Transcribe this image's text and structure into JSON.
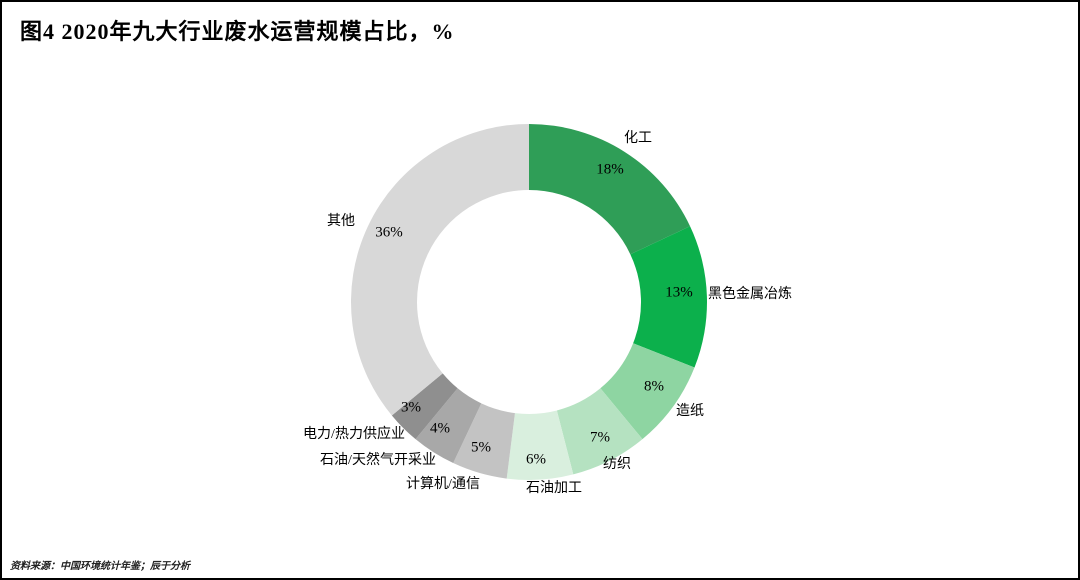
{
  "chart_data": {
    "type": "pie",
    "subtype": "donut",
    "title": "图4  2020年九大行业废水运营规模占比，%",
    "unit": "%",
    "start_angle_deg": 0,
    "direction": "clockwise",
    "inner_radius_ratio": 0.63,
    "slices": [
      {
        "label": "化工",
        "value": 18,
        "pct": "18%",
        "color": "#2f9e57"
      },
      {
        "label": "黑色金属冶炼",
        "value": 13,
        "pct": "13%",
        "color": "#0cb04c"
      },
      {
        "label": "造纸",
        "value": 8,
        "pct": "8%",
        "color": "#8ed5a2"
      },
      {
        "label": "纺织",
        "value": 7,
        "pct": "7%",
        "color": "#b5e2c1"
      },
      {
        "label": "石油加工",
        "value": 6,
        "pct": "6%",
        "color": "#d9efde"
      },
      {
        "label": "计算机/通信",
        "value": 5,
        "pct": "5%",
        "color": "#c3c3c3"
      },
      {
        "label": "石油/天然气开采业",
        "value": 4,
        "pct": "4%",
        "color": "#a8a8a8"
      },
      {
        "label": "电力/热力供应业",
        "value": 3,
        "pct": "3%",
        "color": "#8f8f8f"
      },
      {
        "label": "其他",
        "value": 36,
        "pct": "36%",
        "color": "#d8d8d8"
      }
    ],
    "source": "资料来源：中国环境统计年鉴；辰于分析"
  }
}
